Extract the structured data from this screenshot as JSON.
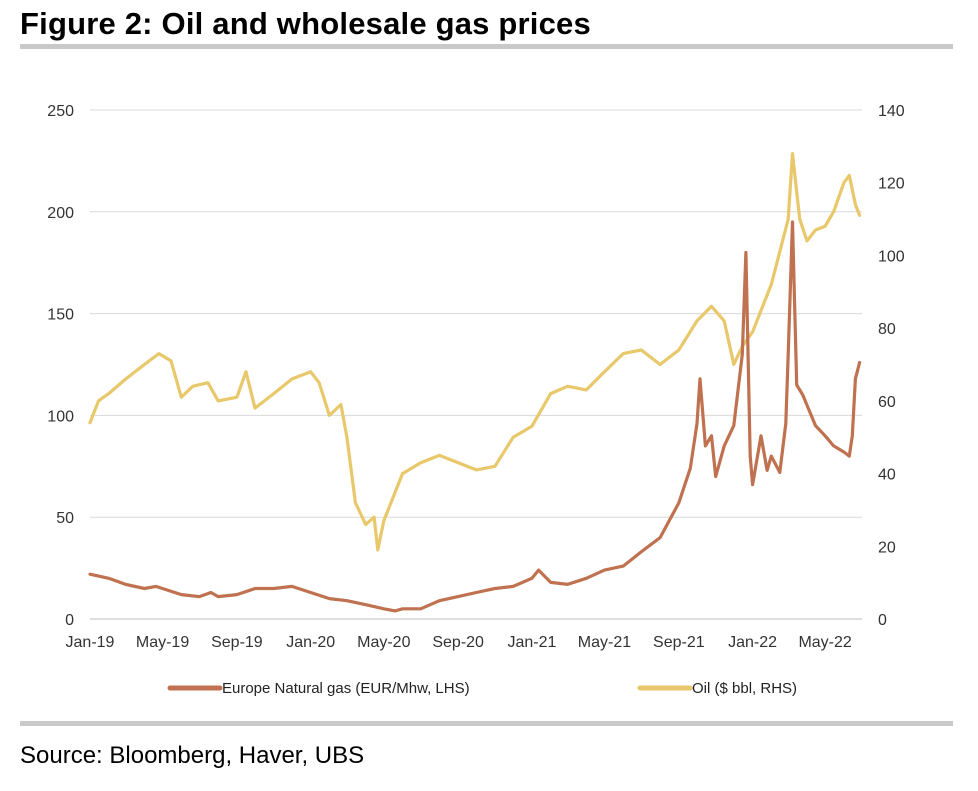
{
  "title": "Figure 2: Oil and wholesale gas prices",
  "source": "Source: Bloomberg, Haver, UBS",
  "chart_data": {
    "type": "line",
    "x_tick_labels": [
      "Jan-19",
      "May-19",
      "Sep-19",
      "Jan-20",
      "May-20",
      "Sep-20",
      "Jan-21",
      "May-21",
      "Sep-21",
      "Jan-22",
      "May-22"
    ],
    "y_left": {
      "ylim": [
        0,
        250
      ],
      "ticks": [
        0,
        50,
        100,
        150,
        200,
        250
      ]
    },
    "y_right": {
      "ylim": [
        0,
        140
      ],
      "ticks": [
        0,
        20,
        40,
        60,
        80,
        100,
        120,
        140
      ]
    },
    "grid": "horizontal",
    "legend_position": "bottom",
    "series": [
      {
        "name": "Europe Natural gas (EUR/Mhw, LHS)",
        "axis": "left",
        "color": "#c0714f",
        "points": [
          [
            "2019-01-01",
            22
          ],
          [
            "2019-02-01",
            20
          ],
          [
            "2019-03-01",
            17
          ],
          [
            "2019-04-01",
            15
          ],
          [
            "2019-04-20",
            16
          ],
          [
            "2019-05-01",
            15
          ],
          [
            "2019-06-01",
            12
          ],
          [
            "2019-07-01",
            11
          ],
          [
            "2019-07-20",
            13
          ],
          [
            "2019-08-01",
            11
          ],
          [
            "2019-09-01",
            12
          ],
          [
            "2019-10-01",
            15
          ],
          [
            "2019-11-01",
            15
          ],
          [
            "2019-12-01",
            16
          ],
          [
            "2020-01-01",
            13
          ],
          [
            "2020-02-01",
            10
          ],
          [
            "2020-03-01",
            9
          ],
          [
            "2020-04-01",
            7
          ],
          [
            "2020-05-01",
            5
          ],
          [
            "2020-05-20",
            4
          ],
          [
            "2020-06-01",
            5
          ],
          [
            "2020-07-01",
            5
          ],
          [
            "2020-08-01",
            9
          ],
          [
            "2020-09-01",
            11
          ],
          [
            "2020-10-01",
            13
          ],
          [
            "2020-11-01",
            15
          ],
          [
            "2020-12-01",
            16
          ],
          [
            "2021-01-01",
            20
          ],
          [
            "2021-01-12",
            24
          ],
          [
            "2021-02-01",
            18
          ],
          [
            "2021-03-01",
            17
          ],
          [
            "2021-04-01",
            20
          ],
          [
            "2021-05-01",
            24
          ],
          [
            "2021-06-01",
            26
          ],
          [
            "2021-07-01",
            33
          ],
          [
            "2021-08-01",
            40
          ],
          [
            "2021-09-01",
            57
          ],
          [
            "2021-09-20",
            74
          ],
          [
            "2021-10-01",
            96
          ],
          [
            "2021-10-06",
            118
          ],
          [
            "2021-10-15",
            85
          ],
          [
            "2021-10-25",
            90
          ],
          [
            "2021-11-01",
            70
          ],
          [
            "2021-11-15",
            85
          ],
          [
            "2021-12-01",
            95
          ],
          [
            "2021-12-15",
            130
          ],
          [
            "2021-12-21",
            180
          ],
          [
            "2021-12-28",
            80
          ],
          [
            "2022-01-01",
            66
          ],
          [
            "2022-01-15",
            90
          ],
          [
            "2022-01-25",
            73
          ],
          [
            "2022-02-01",
            80
          ],
          [
            "2022-02-15",
            72
          ],
          [
            "2022-02-25",
            96
          ],
          [
            "2022-03-01",
            130
          ],
          [
            "2022-03-08",
            195
          ],
          [
            "2022-03-15",
            115
          ],
          [
            "2022-03-25",
            110
          ],
          [
            "2022-04-01",
            105
          ],
          [
            "2022-04-15",
            95
          ],
          [
            "2022-05-01",
            90
          ],
          [
            "2022-05-15",
            85
          ],
          [
            "2022-06-01",
            82
          ],
          [
            "2022-06-10",
            80
          ],
          [
            "2022-06-15",
            90
          ],
          [
            "2022-06-20",
            118
          ],
          [
            "2022-06-27",
            126
          ]
        ]
      },
      {
        "name": "Oil ($ bbl, RHS)",
        "axis": "right",
        "color": "#e8c86a",
        "points": [
          [
            "2019-01-01",
            54
          ],
          [
            "2019-01-15",
            60
          ],
          [
            "2019-02-01",
            62
          ],
          [
            "2019-03-01",
            66
          ],
          [
            "2019-04-01",
            70
          ],
          [
            "2019-04-25",
            73
          ],
          [
            "2019-05-15",
            71
          ],
          [
            "2019-06-01",
            61
          ],
          [
            "2019-06-20",
            64
          ],
          [
            "2019-07-15",
            65
          ],
          [
            "2019-08-01",
            60
          ],
          [
            "2019-09-01",
            61
          ],
          [
            "2019-09-16",
            68
          ],
          [
            "2019-10-01",
            58
          ],
          [
            "2019-11-01",
            62
          ],
          [
            "2019-12-01",
            66
          ],
          [
            "2020-01-01",
            68
          ],
          [
            "2020-01-15",
            65
          ],
          [
            "2020-02-01",
            56
          ],
          [
            "2020-02-20",
            59
          ],
          [
            "2020-03-01",
            50
          ],
          [
            "2020-03-15",
            32
          ],
          [
            "2020-04-01",
            26
          ],
          [
            "2020-04-15",
            28
          ],
          [
            "2020-04-21",
            19
          ],
          [
            "2020-05-01",
            27
          ],
          [
            "2020-06-01",
            40
          ],
          [
            "2020-07-01",
            43
          ],
          [
            "2020-08-01",
            45
          ],
          [
            "2020-09-01",
            43
          ],
          [
            "2020-10-01",
            41
          ],
          [
            "2020-11-01",
            42
          ],
          [
            "2020-12-01",
            50
          ],
          [
            "2021-01-01",
            53
          ],
          [
            "2021-02-01",
            62
          ],
          [
            "2021-03-01",
            64
          ],
          [
            "2021-04-01",
            63
          ],
          [
            "2021-05-01",
            68
          ],
          [
            "2021-06-01",
            73
          ],
          [
            "2021-07-01",
            74
          ],
          [
            "2021-08-01",
            70
          ],
          [
            "2021-09-01",
            74
          ],
          [
            "2021-10-01",
            82
          ],
          [
            "2021-10-25",
            86
          ],
          [
            "2021-11-15",
            82
          ],
          [
            "2021-12-01",
            70
          ],
          [
            "2021-12-15",
            75
          ],
          [
            "2022-01-01",
            79
          ],
          [
            "2022-02-01",
            92
          ],
          [
            "2022-03-01",
            110
          ],
          [
            "2022-03-08",
            128
          ],
          [
            "2022-03-20",
            110
          ],
          [
            "2022-04-01",
            104
          ],
          [
            "2022-04-15",
            107
          ],
          [
            "2022-05-01",
            108
          ],
          [
            "2022-05-15",
            112
          ],
          [
            "2022-06-01",
            120
          ],
          [
            "2022-06-10",
            122
          ],
          [
            "2022-06-20",
            114
          ],
          [
            "2022-06-27",
            111
          ]
        ]
      }
    ]
  }
}
